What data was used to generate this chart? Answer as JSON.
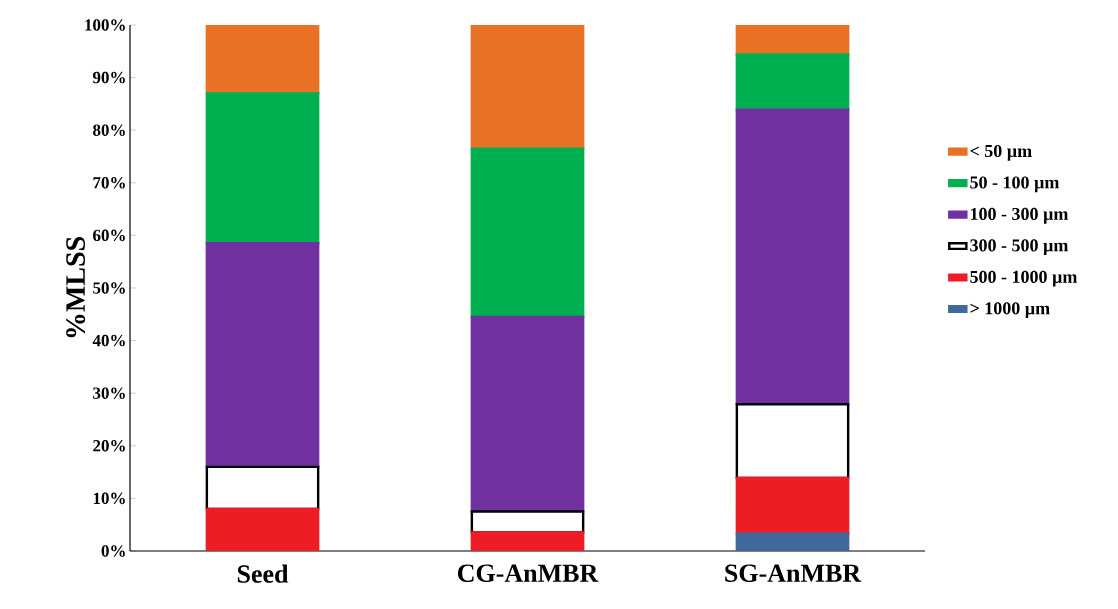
{
  "chart_data": {
    "type": "bar",
    "stacked": true,
    "ylabel": "%MLSS",
    "categories": [
      "Seed",
      "CG-AnMBR",
      "SG-AnMBR"
    ],
    "series": [
      {
        "name": "> 1000 µm",
        "color": "#41699b",
        "values": [
          0,
          0,
          3.3
        ]
      },
      {
        "name": "500 - 1000 µm",
        "color": "#ee1c25",
        "values": [
          8,
          3.5,
          10.6
        ]
      },
      {
        "name": "300 - 500 µm",
        "color": "#000000",
        "values": [
          8,
          4,
          14
        ]
      },
      {
        "name": "100 - 300 µm",
        "color": "#7030a0",
        "values": [
          42.5,
          37,
          56
        ]
      },
      {
        "name": "50 - 100 µm",
        "color": "#00b050",
        "values": [
          28.5,
          32,
          10.5
        ]
      },
      {
        "name": "< 50 µm",
        "color": "#e97125",
        "values": [
          13,
          23.5,
          5.6
        ]
      }
    ],
    "ylim": [
      0,
      100
    ],
    "yticks": [
      {
        "value": 0,
        "label": "0%"
      },
      {
        "value": 10,
        "label": "10%"
      },
      {
        "value": 20,
        "label": "20%"
      },
      {
        "value": 30,
        "label": "30%"
      },
      {
        "value": 40,
        "label": "40%"
      },
      {
        "value": 50,
        "label": "50%"
      },
      {
        "value": 60,
        "label": "60%"
      },
      {
        "value": 70,
        "label": "70%"
      },
      {
        "value": 80,
        "label": "80%"
      },
      {
        "value": 90,
        "label": "90%"
      },
      {
        "value": 100,
        "label": "100%"
      }
    ],
    "legend": "right",
    "grid": false
  }
}
